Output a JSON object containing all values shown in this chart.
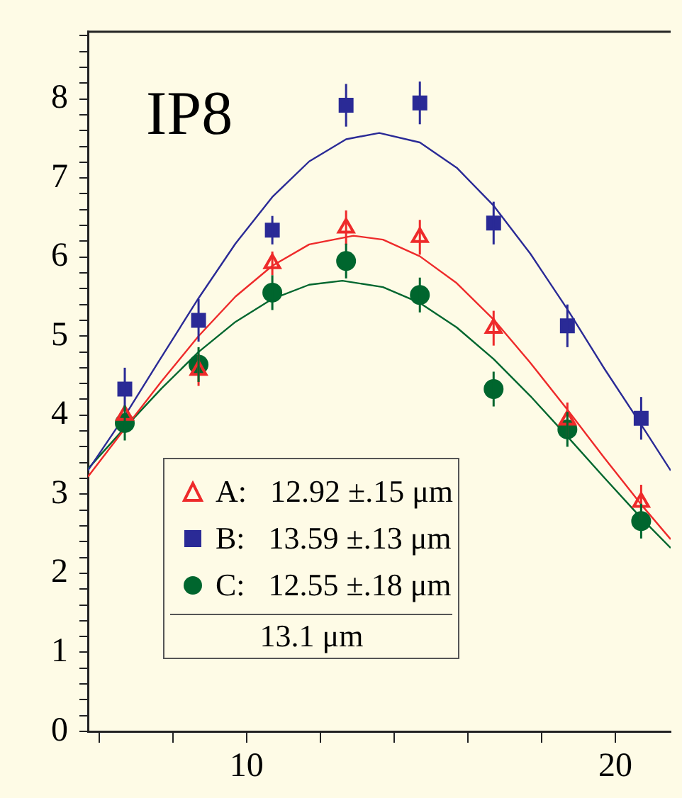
{
  "chart_data": {
    "type": "scatter",
    "title": "IP8",
    "xlim": [
      5.7,
      21.5
    ],
    "xticks": [
      {
        "value": 6,
        "label": null
      },
      {
        "value": 8,
        "label": null
      },
      10,
      {
        "value": 12,
        "label": null
      },
      {
        "value": 14,
        "label": null
      },
      {
        "value": 16,
        "label": null
      },
      {
        "value": 18,
        "label": null
      },
      20
    ],
    "ylim": [
      0,
      8.85
    ],
    "yticks": [
      0,
      {
        "value": 0.2,
        "label": null
      },
      {
        "value": 0.4,
        "label": null
      },
      {
        "value": 0.6,
        "label": null
      },
      {
        "value": 0.8,
        "label": null
      },
      1,
      {
        "value": 1.2,
        "label": null
      },
      {
        "value": 1.4,
        "label": null
      },
      {
        "value": 1.6,
        "label": null
      },
      {
        "value": 1.8,
        "label": null
      },
      2,
      {
        "value": 2.2,
        "label": null
      },
      {
        "value": 2.4,
        "label": null
      },
      {
        "value": 2.6,
        "label": null
      },
      {
        "value": 2.8,
        "label": null
      },
      3,
      {
        "value": 3.2,
        "label": null
      },
      {
        "value": 3.4,
        "label": null
      },
      {
        "value": 3.6,
        "label": null
      },
      {
        "value": 3.8,
        "label": null
      },
      4,
      {
        "value": 4.2,
        "label": null
      },
      {
        "value": 4.4,
        "label": null
      },
      {
        "value": 4.6,
        "label": null
      },
      {
        "value": 4.8,
        "label": null
      },
      5,
      {
        "value": 5.2,
        "label": null
      },
      {
        "value": 5.4,
        "label": null
      },
      {
        "value": 5.6,
        "label": null
      },
      {
        "value": 5.8,
        "label": null
      },
      6,
      {
        "value": 6.2,
        "label": null
      },
      {
        "value": 6.4,
        "label": null
      },
      {
        "value": 6.6,
        "label": null
      },
      {
        "value": 6.8,
        "label": null
      },
      7,
      {
        "value": 7.2,
        "label": null
      },
      {
        "value": 7.4,
        "label": null
      },
      {
        "value": 7.6,
        "label": null
      },
      {
        "value": 7.8,
        "label": null
      },
      8,
      {
        "value": 8.2,
        "label": null
      },
      {
        "value": 8.4,
        "label": null
      },
      {
        "value": 8.6,
        "label": null
      },
      {
        "value": 8.8,
        "label": null
      }
    ],
    "legend": "bottom left",
    "annotations": [
      "13.1 μm"
    ],
    "series": [
      {
        "name": "A:   12.92 ±.15 μm",
        "marker": "triangle",
        "color": "#ee2a2a",
        "x": [
          6.7,
          8.7,
          10.7,
          12.7,
          14.7,
          16.7,
          18.7,
          20.7
        ],
        "values": [
          4.0,
          4.57,
          5.92,
          6.37,
          6.25,
          5.1,
          3.94,
          2.9
        ],
        "errors": [
          null,
          0.2,
          0.15,
          0.22,
          0.22,
          0.22,
          0.22,
          0.22
        ]
      },
      {
        "name": "B:   13.59 ±.13 μm",
        "marker": "square",
        "color": "#2a2a96",
        "x": [
          6.7,
          8.7,
          10.7,
          12.7,
          14.7,
          16.7,
          18.7,
          20.7
        ],
        "values": [
          4.33,
          5.2,
          6.34,
          7.92,
          7.95,
          6.43,
          5.13,
          3.96
        ],
        "errors": [
          0.27,
          0.27,
          0.18,
          0.27,
          0.27,
          0.27,
          0.27,
          0.27
        ]
      },
      {
        "name": "C:   12.55 ±.18 μm",
        "marker": "circle",
        "color": "#00662e",
        "x": [
          6.7,
          8.7,
          10.7,
          12.7,
          14.7,
          16.7,
          18.7,
          20.7
        ],
        "values": [
          3.9,
          4.64,
          5.55,
          5.95,
          5.52,
          4.33,
          3.82,
          2.66
        ],
        "errors": [
          0.22,
          0.22,
          0.22,
          0.22,
          0.22,
          0.22,
          0.22,
          0.22
        ]
      },
      {
        "type": "line",
        "marker": "none",
        "color": "#ee2a2a",
        "x": [
          5.7,
          6.7,
          7.7,
          8.7,
          9.7,
          10.7,
          11.7,
          12.9,
          13.7,
          14.7,
          15.7,
          16.7,
          17.7,
          18.7,
          19.7,
          20.7,
          21.5
        ],
        "values": [
          3.22,
          3.83,
          4.43,
          5.0,
          5.5,
          5.89,
          6.16,
          6.27,
          6.22,
          6.01,
          5.67,
          5.21,
          4.66,
          4.07,
          3.46,
          2.87,
          2.43
        ]
      },
      {
        "type": "line",
        "marker": "none",
        "color": "#2a2a96",
        "x": [
          5.7,
          6.7,
          7.7,
          8.7,
          9.7,
          10.7,
          11.7,
          12.7,
          13.6,
          14.7,
          15.7,
          16.7,
          17.7,
          18.7,
          19.7,
          20.7,
          21.5
        ],
        "values": [
          3.3,
          3.99,
          4.74,
          5.48,
          6.17,
          6.76,
          7.21,
          7.49,
          7.57,
          7.45,
          7.13,
          6.65,
          6.04,
          5.34,
          4.59,
          3.88,
          3.3
        ]
      },
      {
        "type": "line",
        "marker": "none",
        "color": "#00662e",
        "x": [
          5.7,
          6.7,
          7.7,
          8.7,
          9.7,
          10.7,
          11.7,
          12.6,
          13.7,
          14.7,
          15.7,
          16.7,
          17.7,
          18.7,
          19.7,
          20.7,
          21.5
        ],
        "values": [
          3.32,
          3.84,
          4.34,
          4.8,
          5.18,
          5.47,
          5.65,
          5.7,
          5.62,
          5.42,
          5.11,
          4.71,
          4.24,
          3.73,
          3.21,
          2.7,
          2.32
        ]
      }
    ]
  }
}
